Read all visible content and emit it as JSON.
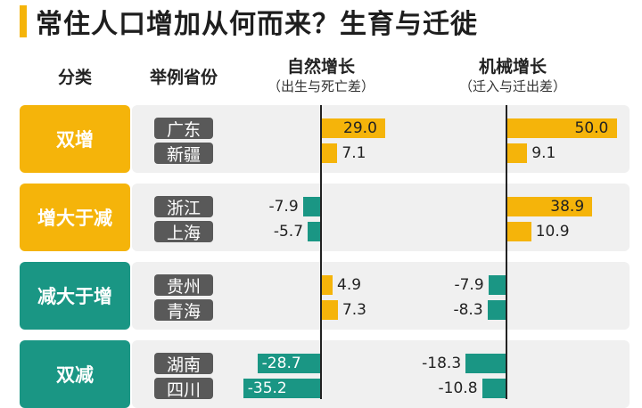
{
  "title": "常住人口增加从何而来？生育与迁徙",
  "headers": {
    "category": "分类",
    "example": "举例省份",
    "natural": "自然增长",
    "natural_sub": "（出生与死亡差）",
    "mechanical": "机械增长",
    "mechanical_sub": "（迁入与迁出差）"
  },
  "colors": {
    "positive": "#f5b40a",
    "negative": "#1a9684",
    "category_dual_increase": "#f5b40a",
    "category_decrease": "#1a9684",
    "province_label_bg": "#595959",
    "group_background": "#f0f0f0"
  },
  "groups": [
    {
      "label": "双增"
    },
    {
      "label": "增大于减"
    },
    {
      "label": "减大于增"
    },
    {
      "label": "双减"
    }
  ],
  "chart_data": {
    "type": "bar",
    "orientation": "horizontal",
    "title": "常住人口增加从何而来？生育与迁徙",
    "categories": [
      "广东",
      "新疆",
      "浙江",
      "上海",
      "贵州",
      "青海",
      "湖南",
      "四川"
    ],
    "groups": [
      "双增",
      "双增",
      "增大于减",
      "增大于减",
      "减大于增",
      "减大于增",
      "双减",
      "双减"
    ],
    "series": [
      {
        "name": "自然增长",
        "values": [
          29.0,
          7.1,
          -7.9,
          -5.7,
          4.9,
          7.3,
          -28.7,
          -35.2
        ]
      },
      {
        "name": "机械增长",
        "values": [
          50.0,
          9.1,
          38.9,
          10.9,
          -7.9,
          -8.3,
          -18.3,
          -10.8
        ]
      }
    ],
    "labels": {
      "自然增长": [
        "29.0",
        "7.1",
        "-7.9",
        "-5.7",
        "4.9",
        "7.3",
        "-28.7",
        "-35.2"
      ],
      "机械增长": [
        "50.0",
        "9.1",
        "38.9",
        "10.9",
        "-7.9",
        "-8.3",
        "-18.3",
        "-10.8"
      ]
    },
    "positive_color": "#f5b40a",
    "negative_color": "#1a9684"
  }
}
